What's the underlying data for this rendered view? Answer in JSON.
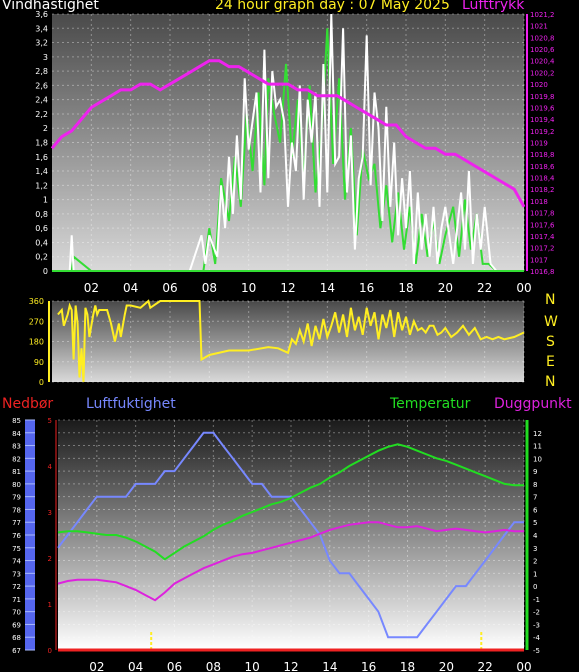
{
  "header": {
    "left_title": "Vindhastighet",
    "center_title": "24 hour graph day : 07 May 2025",
    "right_title": "Lufttrykk"
  },
  "colors": {
    "wind": "#ffffff",
    "gust": "#33dd33",
    "pressure": "#ee22ee",
    "direction": "#ffee22",
    "rain": "#ee2222",
    "humidity": "#7788ff",
    "temperature": "#22dd22",
    "dewpoint": "#dd22dd",
    "compass": "#ffee22"
  },
  "compass": [
    "N",
    "W",
    "S",
    "E",
    "N"
  ],
  "middle_labels": {
    "rain": "Nedbør",
    "humidity": "Luftfuktighet",
    "temperature": "Temperatur",
    "dewpoint": "Duggpunkt"
  },
  "chart_data": [
    {
      "type": "line",
      "title": "Vindhastighet / Lufttrykk",
      "x_unit": "hour",
      "xlim": [
        0,
        24
      ],
      "x_ticks": [
        "02",
        "04",
        "06",
        "08",
        "10",
        "12",
        "14",
        "16",
        "18",
        "20",
        "22",
        "00"
      ],
      "ylim": [
        0,
        3.6
      ],
      "y_ticks": [
        "0",
        "0,2",
        "0,4",
        "0,6",
        "0,8",
        "1",
        "1,2",
        "1,4",
        "1,6",
        "1,8",
        "2",
        "2,2",
        "2,4",
        "2,6",
        "2,8",
        "3",
        "3,2",
        "3,4",
        "3,6"
      ],
      "y2lim": [
        1016.8,
        1021.2
      ],
      "y2_ticks": [
        "1016,8",
        "1017",
        "1017,2",
        "1017,4",
        "1017,6",
        "1017,8",
        "1018",
        "1018,2",
        "1018,4",
        "1018,6",
        "1018,8",
        "1019",
        "1019,2",
        "1019,4",
        "1019,6",
        "1019,8",
        "1020",
        "1020,2",
        "1020,4",
        "1020,6",
        "1020,8",
        "1021",
        "1021,2"
      ],
      "series": [
        {
          "name": "Lufttrykk",
          "axis": "right",
          "x": [
            0,
            0.5,
            1,
            1.5,
            2,
            2.5,
            3,
            3.5,
            4,
            4.5,
            5,
            5.5,
            6,
            6.5,
            7,
            7.5,
            8,
            8.5,
            9,
            9.5,
            10,
            10.5,
            11,
            11.5,
            12,
            12.5,
            13,
            13.5,
            14,
            14.5,
            15,
            15.5,
            16,
            16.5,
            17,
            17.5,
            18,
            18.5,
            19,
            19.5,
            20,
            20.5,
            21,
            21.5,
            22,
            22.5,
            23,
            23.5,
            24
          ],
          "values": [
            1018.9,
            1019.1,
            1019.2,
            1019.4,
            1019.6,
            1019.7,
            1019.8,
            1019.9,
            1019.9,
            1020.0,
            1020.0,
            1019.9,
            1020.0,
            1020.1,
            1020.2,
            1020.3,
            1020.4,
            1020.4,
            1020.3,
            1020.3,
            1020.2,
            1020.1,
            1020.0,
            1020.0,
            1020.0,
            1019.9,
            1019.9,
            1019.8,
            1019.8,
            1019.8,
            1019.7,
            1019.6,
            1019.5,
            1019.4,
            1019.3,
            1019.3,
            1019.1,
            1019.0,
            1018.9,
            1018.9,
            1018.8,
            1018.8,
            1018.7,
            1018.6,
            1018.5,
            1018.4,
            1018.3,
            1018.2,
            1017.9
          ]
        },
        {
          "name": "Vindhastighet",
          "axis": "left",
          "x": [
            0,
            0.9,
            1.0,
            1.1,
            2,
            3,
            4,
            5,
            6,
            7,
            7.6,
            7.8,
            8.0,
            8.4,
            8.6,
            8.8,
            9.0,
            9.2,
            9.4,
            9.6,
            9.8,
            10.0,
            10.2,
            10.4,
            10.6,
            10.8,
            11.0,
            11.2,
            11.4,
            11.6,
            11.8,
            12.0,
            12.2,
            12.4,
            12.6,
            12.8,
            13.0,
            13.2,
            13.4,
            13.6,
            13.8,
            14.0,
            14.2,
            14.4,
            14.6,
            14.8,
            15.0,
            15.2,
            15.4,
            15.6,
            15.8,
            16.0,
            16.2,
            16.4,
            16.6,
            16.8,
            17.0,
            17.2,
            17.4,
            17.6,
            17.8,
            18.0,
            18.2,
            18.4,
            18.6,
            18.8,
            19.0,
            19.2,
            19.4,
            19.6,
            19.8,
            20.0,
            20.4,
            20.8,
            21.0,
            21.2,
            21.4,
            21.6,
            21.8,
            22.0,
            22.3,
            22.6,
            23,
            23.5,
            24
          ],
          "values": [
            0,
            0,
            0.5,
            0,
            0,
            0,
            0,
            0,
            0,
            0,
            0.5,
            0.1,
            0.5,
            0.2,
            1.2,
            0.6,
            1.6,
            0.8,
            1.9,
            1.0,
            2.7,
            1.7,
            2.1,
            2.5,
            1.1,
            3.1,
            1.3,
            2.8,
            2.3,
            2.4,
            2.1,
            0.9,
            1.8,
            1.4,
            2.6,
            1.0,
            2.4,
            1.8,
            2.5,
            0.9,
            2.9,
            1.1,
            3.6,
            1.5,
            1.6,
            3.4,
            1.1,
            1.9,
            0.3,
            1.3,
            1.6,
            3.3,
            1.2,
            2.5,
            2.0,
            0.7,
            2.3,
            0.9,
            1.8,
            0.5,
            1.3,
            0.6,
            1.4,
            0.1,
            1.1,
            0.3,
            0.8,
            0.2,
            0.9,
            0.1,
            0.6,
            0.9,
            0.1,
            1.1,
            0.3,
            1.4,
            0.1,
            0.8,
            0.3,
            0.9,
            0.1,
            0,
            0,
            0,
            0
          ]
        },
        {
          "name": "Vindkast",
          "axis": "left",
          "x": [
            0,
            1.0,
            1.1,
            2,
            4,
            6,
            7.5,
            7.7,
            8.0,
            8.3,
            8.6,
            9.0,
            9.3,
            9.6,
            9.9,
            10.2,
            10.5,
            10.8,
            11.0,
            11.3,
            11.6,
            11.9,
            12.2,
            12.5,
            12.8,
            13.1,
            13.4,
            13.7,
            14.0,
            14.3,
            14.6,
            14.9,
            15.2,
            15.5,
            15.8,
            16.1,
            16.4,
            16.7,
            17.0,
            17.3,
            17.6,
            17.9,
            18.2,
            18.5,
            18.8,
            19.1,
            19.4,
            19.7,
            20.0,
            20.4,
            20.7,
            21.0,
            21.3,
            21.6,
            21.9,
            22.2,
            22.6,
            23,
            24
          ],
          "values": [
            0,
            0,
            0.2,
            0,
            0,
            0,
            0,
            0,
            0.6,
            0.1,
            1.3,
            0.7,
            1.6,
            0.9,
            2.2,
            1.4,
            2.5,
            1.2,
            2.7,
            2.2,
            1.8,
            2.9,
            1.6,
            2.4,
            1.3,
            2.6,
            1.1,
            1.9,
            3.4,
            1.5,
            2.7,
            1.0,
            2.0,
            0.5,
            1.7,
            1.3,
            1.5,
            0.6,
            1.2,
            0.4,
            1.1,
            0.3,
            0.9,
            0.1,
            0.8,
            0.2,
            0.7,
            0.1,
            0.5,
            0.9,
            0.2,
            1.0,
            0.3,
            0.8,
            0.1,
            0.1,
            0,
            0,
            0
          ]
        }
      ]
    },
    {
      "type": "line",
      "title": "Vindretning",
      "x_unit": "hour",
      "xlim": [
        0,
        24
      ],
      "ylim": [
        0,
        360
      ],
      "y_ticks": [
        "0",
        "90",
        "180",
        "270",
        "360"
      ],
      "series": [
        {
          "name": "Vindretning",
          "x": [
            0.3,
            0.5,
            0.6,
            0.8,
            0.9,
            1.0,
            1.1,
            1.2,
            1.3,
            1.4,
            1.5,
            1.6,
            1.7,
            1.8,
            1.9,
            2.0,
            2.1,
            2.2,
            2.3,
            2.4,
            2.6,
            2.8,
            3.0,
            3.2,
            3.4,
            3.5,
            3.7,
            3.8,
            4.0,
            4.5,
            4.9,
            5.0,
            5.5,
            6.0,
            7.0,
            7.5,
            7.6,
            8.0,
            9.0,
            10.0,
            11.0,
            11.5,
            12.0,
            12.2,
            12.4,
            12.6,
            12.8,
            13.0,
            13.2,
            13.4,
            13.6,
            13.8,
            14.0,
            14.2,
            14.4,
            14.6,
            14.8,
            15.0,
            15.2,
            15.4,
            15.6,
            15.8,
            16.0,
            16.2,
            16.4,
            16.6,
            16.8,
            17.0,
            17.2,
            17.4,
            17.6,
            17.8,
            18.0,
            18.2,
            18.4,
            18.6,
            18.8,
            19.0,
            19.2,
            19.4,
            19.6,
            19.8,
            20.0,
            20.3,
            20.6,
            20.9,
            21.2,
            21.5,
            21.8,
            22.1,
            22.4,
            22.7,
            23.0,
            23.5,
            24.0
          ],
          "values": [
            300,
            320,
            250,
            300,
            340,
            320,
            100,
            340,
            260,
            20,
            150,
            0,
            330,
            300,
            200,
            250,
            300,
            340,
            300,
            320,
            320,
            320,
            260,
            180,
            260,
            200,
            300,
            340,
            340,
            330,
            360,
            330,
            360,
            360,
            360,
            360,
            100,
            120,
            140,
            140,
            155,
            150,
            130,
            190,
            170,
            230,
            180,
            260,
            160,
            250,
            190,
            280,
            200,
            250,
            310,
            220,
            300,
            200,
            330,
            230,
            290,
            210,
            330,
            250,
            310,
            190,
            300,
            240,
            320,
            200,
            310,
            230,
            290,
            210,
            270,
            230,
            240,
            220,
            250,
            250,
            210,
            220,
            240,
            200,
            220,
            250,
            210,
            240,
            190,
            200,
            190,
            200,
            190,
            200,
            220
          ]
        }
      ]
    },
    {
      "type": "line",
      "title": "Luftfuktighet / Temperatur / Duggpunkt",
      "x_unit": "hour",
      "xlim": [
        0,
        24
      ],
      "y_left_humidity": {
        "range": [
          67,
          85
        ],
        "ticks": [
          "67",
          "68",
          "69",
          "70",
          "71",
          "72",
          "73",
          "74",
          "75",
          "76",
          "77",
          "78",
          "79",
          "80",
          "81",
          "82",
          "83",
          "84",
          "85"
        ]
      },
      "y_left_rain": {
        "range": [
          0,
          5
        ],
        "ticks": [
          "0",
          "1",
          "2",
          "3",
          "4",
          "5"
        ]
      },
      "y_right_temp": {
        "range": [
          -5,
          13
        ],
        "ticks": [
          "-5",
          "-4",
          "-3",
          "-2",
          "-1",
          "0",
          "1",
          "2",
          "3",
          "4",
          "5",
          "6",
          "7",
          "8",
          "9",
          "10",
          "11",
          "12"
        ]
      },
      "series": [
        {
          "name": "Luftfuktighet",
          "axis": "humidity",
          "x": [
            0,
            0.5,
            1,
            1.5,
            2,
            2.5,
            3,
            3.5,
            4,
            4.5,
            5,
            5.5,
            6,
            6.5,
            7,
            7.5,
            8,
            8.5,
            9,
            9.5,
            10,
            10.5,
            11,
            11.5,
            12,
            12.5,
            13,
            13.5,
            14,
            14.5,
            15,
            15.5,
            16,
            16.5,
            17,
            17.5,
            18,
            18.5,
            19,
            19.5,
            20,
            20.5,
            21,
            21.5,
            22,
            22.5,
            23,
            23.5,
            24
          ],
          "values": [
            75,
            76,
            77,
            78,
            79,
            79,
            79,
            79,
            80,
            80,
            80,
            81,
            81,
            82,
            83,
            84,
            84,
            83,
            82,
            81,
            80,
            80,
            79,
            79,
            79,
            78,
            77,
            76,
            74,
            73,
            73,
            72,
            71,
            70,
            68,
            68,
            68,
            68,
            69,
            70,
            71,
            72,
            72,
            73,
            74,
            75,
            76,
            77,
            77
          ]
        },
        {
          "name": "Temperatur",
          "axis": "temp",
          "x": [
            0,
            0.5,
            1,
            1.5,
            2,
            2.5,
            3,
            3.5,
            4,
            4.5,
            5,
            5.5,
            6,
            6.5,
            7,
            7.5,
            8,
            8.5,
            9,
            9.5,
            10,
            10.5,
            11,
            11.5,
            12,
            12.5,
            13,
            13.5,
            14,
            14.5,
            15,
            15.5,
            16,
            16.5,
            17,
            17.5,
            18,
            18.5,
            19,
            19.5,
            20,
            20.5,
            21,
            21.5,
            22,
            22.5,
            23,
            23.5,
            24
          ],
          "values": [
            4.2,
            4.3,
            4.3,
            4.2,
            4.1,
            4.0,
            4.0,
            3.8,
            3.5,
            3.1,
            2.7,
            2.1,
            2.6,
            3.1,
            3.5,
            3.9,
            4.4,
            4.8,
            5.1,
            5.5,
            5.8,
            6.1,
            6.4,
            6.6,
            6.9,
            7.3,
            7.7,
            8.0,
            8.5,
            8.9,
            9.4,
            9.8,
            10.2,
            10.6,
            10.9,
            11.1,
            10.9,
            10.6,
            10.3,
            10.0,
            9.8,
            9.5,
            9.2,
            8.9,
            8.6,
            8.3,
            8.0,
            7.9,
            7.9
          ]
        },
        {
          "name": "Duggpunkt",
          "axis": "temp",
          "x": [
            0,
            0.5,
            1,
            1.5,
            2,
            2.5,
            3,
            3.5,
            4,
            4.5,
            5,
            5.5,
            6,
            6.5,
            7,
            7.5,
            8,
            8.5,
            9,
            9.5,
            10,
            10.5,
            11,
            11.5,
            12,
            12.5,
            13,
            13.5,
            14,
            14.5,
            15,
            15.5,
            16,
            16.5,
            17,
            17.5,
            18,
            18.5,
            19,
            19.5,
            20,
            20.5,
            21,
            21.5,
            22,
            22.5,
            23,
            23.5,
            24
          ],
          "values": [
            0.2,
            0.4,
            0.5,
            0.5,
            0.5,
            0.4,
            0.3,
            0.0,
            -0.3,
            -0.7,
            -1.1,
            -0.5,
            0.2,
            0.6,
            1.0,
            1.4,
            1.7,
            2.0,
            2.3,
            2.5,
            2.6,
            2.8,
            3.0,
            3.2,
            3.4,
            3.6,
            3.8,
            4.1,
            4.4,
            4.6,
            4.8,
            4.9,
            5.0,
            5.0,
            4.8,
            4.6,
            4.6,
            4.7,
            4.5,
            4.3,
            4.4,
            4.5,
            4.4,
            4.3,
            4.2,
            4.3,
            4.4,
            4.3,
            4.3
          ]
        },
        {
          "name": "Nedbør",
          "axis": "rain",
          "x": [
            0,
            24
          ],
          "values": [
            0,
            0
          ]
        }
      ],
      "markers_x": [
        4.8,
        21.8
      ],
      "x_ticks": [
        "02",
        "04",
        "06",
        "08",
        "10",
        "12",
        "14",
        "16",
        "18",
        "20",
        "22",
        "00"
      ]
    }
  ]
}
